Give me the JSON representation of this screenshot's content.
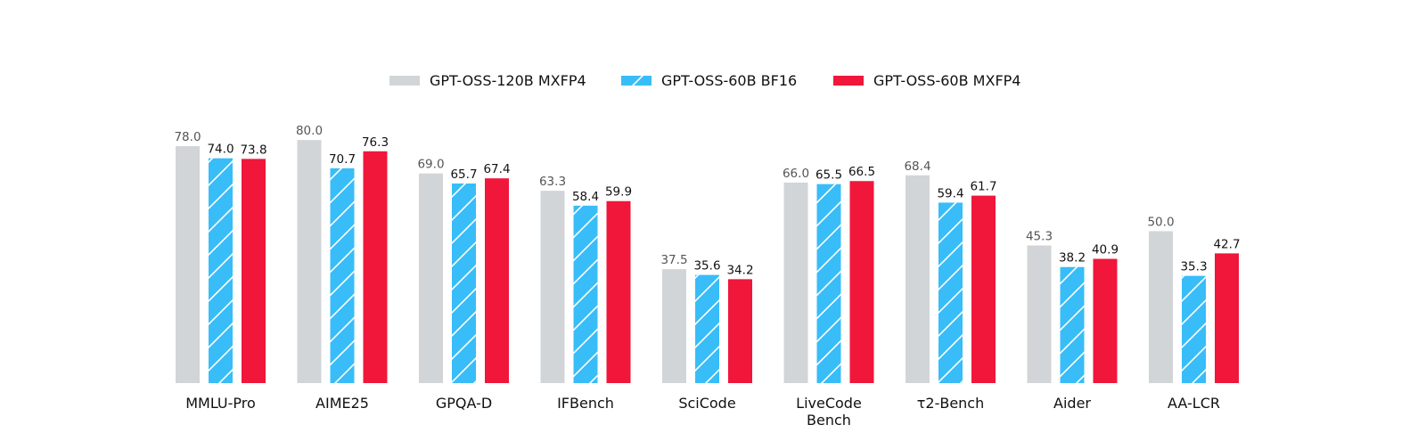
{
  "chart_data": {
    "type": "bar",
    "categories": [
      [
        "MMLU-Pro"
      ],
      [
        "AIME25"
      ],
      [
        "GPQA-D"
      ],
      [
        "IFBench"
      ],
      [
        "SciCode"
      ],
      [
        "LiveCode",
        "Bench"
      ],
      [
        "τ2-Bench"
      ],
      [
        "Aider"
      ],
      [
        "AA-LCR"
      ]
    ],
    "series": [
      {
        "name": "GPT-OSS-120B MXFP4",
        "color": "#d1d5d8",
        "label_color": "#555555",
        "pattern": "solid",
        "values": [
          78.0,
          80.0,
          69.0,
          63.3,
          37.5,
          66.0,
          68.4,
          45.3,
          50.0
        ],
        "labels": [
          "78.0",
          "80.0",
          "69.0",
          "63.3",
          "37.5",
          "66.0",
          "68.4",
          "45.3",
          "50.0"
        ]
      },
      {
        "name": "GPT-OSS-60B BF16",
        "color": "#38bdf8",
        "label_color": "#111111",
        "pattern": "hatch",
        "values": [
          74.0,
          70.7,
          65.7,
          58.4,
          35.6,
          65.5,
          59.4,
          38.2,
          35.3
        ],
        "labels": [
          "74.0",
          "70.7",
          "65.7",
          "58.4",
          "35.6",
          "65.5",
          "59.4",
          "38.2",
          "35.3"
        ]
      },
      {
        "name": "GPT-OSS-60B MXFP4",
        "color": "#f0173a",
        "label_color": "#111111",
        "pattern": "solid",
        "values": [
          73.8,
          76.3,
          67.4,
          59.9,
          34.2,
          66.5,
          61.7,
          40.9,
          42.7
        ],
        "labels": [
          "73.8",
          "76.3",
          "67.4",
          "59.9",
          "34.2",
          "66.5",
          "61.7",
          "40.9",
          "42.7"
        ]
      }
    ],
    "ylim": [
      0,
      80
    ],
    "grid": false,
    "legend": "top-center"
  }
}
